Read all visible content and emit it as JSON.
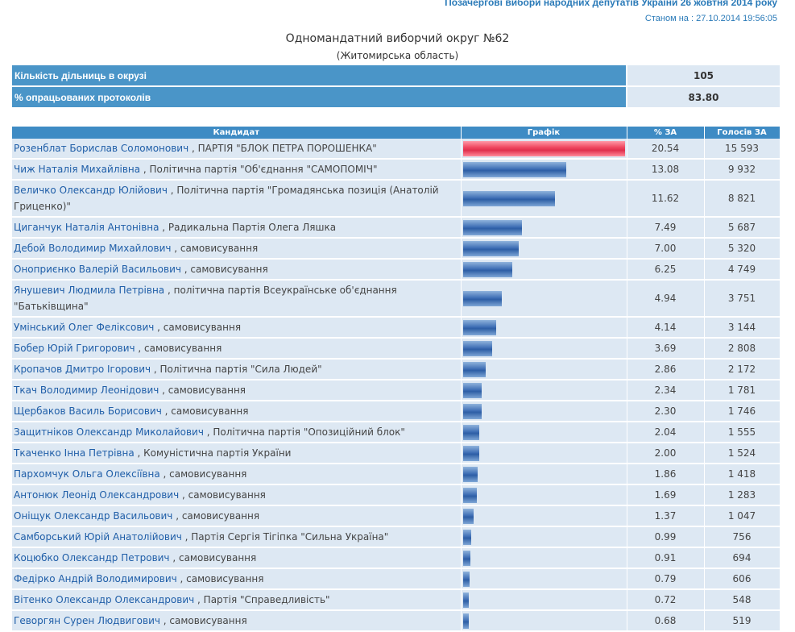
{
  "header": {
    "election_title": "Позачергові вибори народних депутатів України 26 жовтня 2014 року",
    "status_label": "Станом на : 27.10.2014 19:56:05"
  },
  "district": {
    "title": "Одномандатний виборчий округ №62",
    "region": "(Житомирська область)"
  },
  "summary": [
    {
      "label": "Кількість дільниць в окрузі",
      "value": "105"
    },
    {
      "label": "% опрацьованих протоколів",
      "value": "83.80"
    }
  ],
  "table": {
    "headers": [
      "Кандидат",
      "Графік",
      "% ЗА",
      "Голосів ЗА"
    ],
    "colors": {
      "leader_bar": "#e8344f",
      "bar": "#3f6fb5",
      "header_bg": "#3e8bc4",
      "row_bg": "#dde8f3"
    },
    "rows": [
      {
        "name": "Розенблат Борислав Соломонович",
        "party": " , ПАРТІЯ \"БЛОК ПЕТРА ПОРОШЕНКА\"",
        "pct": "20.54",
        "pct_num": 20.54,
        "votes": "15 593"
      },
      {
        "name": "Чиж Наталія Михайлівна",
        "party": " , Політична партія \"Об'єднання \"САМОПОМІЧ\"",
        "pct": "13.08",
        "pct_num": 13.08,
        "votes": "9 932"
      },
      {
        "name": "Величко Олександр Юлійович",
        "party": " , Політична партія \"Громадянська позиція (Анатолій Гриценко)\"",
        "pct": "11.62",
        "pct_num": 11.62,
        "votes": "8 821"
      },
      {
        "name": "Циганчук Наталія Антонівна",
        "party": " , Радикальна Партія Олега Ляшка",
        "pct": "7.49",
        "pct_num": 7.49,
        "votes": "5 687"
      },
      {
        "name": "Дебой Володимир Михайлович",
        "party": " , самовисування",
        "pct": "7.00",
        "pct_num": 7.0,
        "votes": "5 320"
      },
      {
        "name": "Оноприєнко Валерій Васильович",
        "party": " , самовисування",
        "pct": "6.25",
        "pct_num": 6.25,
        "votes": "4 749"
      },
      {
        "name": "Янушевич Людмила Петрівна",
        "party": " , політична партія Всеукраїнське об'єднання \"Батьківщина\"",
        "pct": "4.94",
        "pct_num": 4.94,
        "votes": "3 751"
      },
      {
        "name": "Умінський Олег Феліксович",
        "party": " , самовисування",
        "pct": "4.14",
        "pct_num": 4.14,
        "votes": "3 144"
      },
      {
        "name": "Бобер Юрій Григорович",
        "party": " , самовисування",
        "pct": "3.69",
        "pct_num": 3.69,
        "votes": "2 808"
      },
      {
        "name": "Кропачов Дмитро Ігорович",
        "party": " , Політична партія \"Сила Людей\"",
        "pct": "2.86",
        "pct_num": 2.86,
        "votes": "2 172"
      },
      {
        "name": "Ткач Володимир Леонідович",
        "party": " , самовисування",
        "pct": "2.34",
        "pct_num": 2.34,
        "votes": "1 781"
      },
      {
        "name": "Щербаков Василь Борисович",
        "party": " , самовисування",
        "pct": "2.30",
        "pct_num": 2.3,
        "votes": "1 746"
      },
      {
        "name": "Защитніков Олександр Миколайович",
        "party": " , Політична партія \"Опозиційний блок\"",
        "pct": "2.04",
        "pct_num": 2.04,
        "votes": "1 555"
      },
      {
        "name": "Ткаченко Інна Петрівна",
        "party": " , Комуністична партія України",
        "pct": "2.00",
        "pct_num": 2.0,
        "votes": "1 524"
      },
      {
        "name": "Пархомчук Ольга Олексіївна",
        "party": " , самовисування",
        "pct": "1.86",
        "pct_num": 1.86,
        "votes": "1 418"
      },
      {
        "name": "Антонюк Леонід Олександрович",
        "party": " , самовисування",
        "pct": "1.69",
        "pct_num": 1.69,
        "votes": "1 283"
      },
      {
        "name": "Оніщук Олександр Васильович",
        "party": " , самовисування",
        "pct": "1.37",
        "pct_num": 1.37,
        "votes": "1 047"
      },
      {
        "name": "Самборський Юрій Анатолійович",
        "party": " , Партія Сергія Тігіпка \"Сильна Україна\"",
        "pct": "0.99",
        "pct_num": 0.99,
        "votes": "756"
      },
      {
        "name": "Коцюбко Олександр Петрович",
        "party": " , самовисування",
        "pct": "0.91",
        "pct_num": 0.91,
        "votes": "694"
      },
      {
        "name": "Федірко Андрій Володимирович",
        "party": " , самовисування",
        "pct": "0.79",
        "pct_num": 0.79,
        "votes": "606"
      },
      {
        "name": "Вітенко Олександр Олександрович",
        "party": " , Партія \"Справедливість\"",
        "pct": "0.72",
        "pct_num": 0.72,
        "votes": "548"
      },
      {
        "name": "Геворгян Сурен Людвигович",
        "party": " , самовисування",
        "pct": "0.68",
        "pct_num": 0.68,
        "votes": "519"
      }
    ]
  }
}
